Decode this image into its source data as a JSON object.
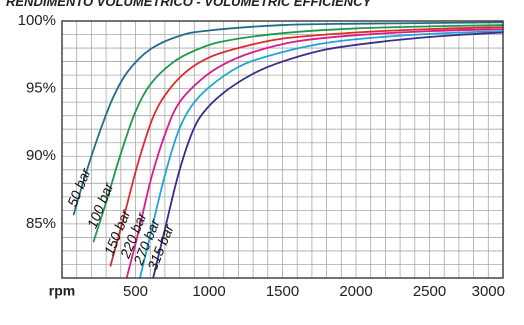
{
  "chart_data": {
    "type": "line",
    "title": "RENDIMENTO VOLUMETRICO - VOLUMETRIC EFFICIENCY",
    "xlabel": "rpm",
    "ylabel": "",
    "xlim": [
      0,
      3000
    ],
    "ylim": [
      81,
      100
    ],
    "x_ticks": [
      {
        "value": 500,
        "label": "500"
      },
      {
        "value": 1000,
        "label": "1000"
      },
      {
        "value": 1500,
        "label": "1500"
      },
      {
        "value": 2000,
        "label": "2000"
      },
      {
        "value": 2500,
        "label": "2500"
      },
      {
        "value": 3000,
        "label": "3000"
      }
    ],
    "y_ticks": [
      {
        "value": 100,
        "label": "100%"
      },
      {
        "value": 95,
        "label": "95%"
      },
      {
        "value": 90,
        "label": "90%"
      },
      {
        "value": 85,
        "label": "85%"
      }
    ],
    "grid": true,
    "grid_color": "#a8a8a8",
    "frame_color": "#444444",
    "series": [
      {
        "name": "50 bar",
        "color": "#1f6e8c",
        "points": [
          [
            80,
            85.7
          ],
          [
            150,
            88.3
          ],
          [
            250,
            91.6
          ],
          [
            350,
            94.4
          ],
          [
            450,
            96.3
          ],
          [
            600,
            97.9
          ],
          [
            800,
            98.9
          ],
          [
            1000,
            99.3
          ],
          [
            1500,
            99.7
          ],
          [
            2000,
            99.8
          ],
          [
            2500,
            99.85
          ],
          [
            3000,
            99.9
          ]
        ]
      },
      {
        "name": "100 bar",
        "color": "#1f9a4a",
        "points": [
          [
            215,
            83.7
          ],
          [
            300,
            86.6
          ],
          [
            400,
            90.2
          ],
          [
            500,
            93.3
          ],
          [
            600,
            95.3
          ],
          [
            750,
            96.9
          ],
          [
            900,
            97.8
          ],
          [
            1100,
            98.5
          ],
          [
            1500,
            99.1
          ],
          [
            2000,
            99.45
          ],
          [
            2500,
            99.6
          ],
          [
            3000,
            99.7
          ]
        ]
      },
      {
        "name": "150 bar",
        "color": "#dc2b2b",
        "points": [
          [
            330,
            81.9
          ],
          [
            420,
            85.5
          ],
          [
            520,
            89.6
          ],
          [
            620,
            92.9
          ],
          [
            720,
            94.8
          ],
          [
            850,
            96.3
          ],
          [
            1000,
            97.3
          ],
          [
            1200,
            98.0
          ],
          [
            1500,
            98.7
          ],
          [
            2000,
            99.15
          ],
          [
            2500,
            99.4
          ],
          [
            3000,
            99.55
          ]
        ]
      },
      {
        "name": "220 bar",
        "color": "#d81b8a",
        "points": [
          [
            440,
            81.0
          ],
          [
            520,
            84.4
          ],
          [
            610,
            88.5
          ],
          [
            710,
            91.9
          ],
          [
            800,
            94.0
          ],
          [
            950,
            95.7
          ],
          [
            1100,
            96.8
          ],
          [
            1300,
            97.7
          ],
          [
            1600,
            98.5
          ],
          [
            2000,
            98.95
          ],
          [
            2500,
            99.25
          ],
          [
            3000,
            99.4
          ]
        ]
      },
      {
        "name": "270 bar",
        "color": "#1ea5d6",
        "points": [
          [
            530,
            81.0
          ],
          [
            610,
            84.6
          ],
          [
            700,
            88.6
          ],
          [
            790,
            91.8
          ],
          [
            880,
            93.7
          ],
          [
            1000,
            95.1
          ],
          [
            1200,
            96.6
          ],
          [
            1400,
            97.4
          ],
          [
            1700,
            98.2
          ],
          [
            2000,
            98.65
          ],
          [
            2500,
            99.05
          ],
          [
            3000,
            99.25
          ]
        ]
      },
      {
        "name": "315 bar",
        "color": "#3d2a8a",
        "points": [
          [
            620,
            81.0
          ],
          [
            700,
            84.6
          ],
          [
            790,
            88.6
          ],
          [
            880,
            91.6
          ],
          [
            960,
            93.2
          ],
          [
            1100,
            94.7
          ],
          [
            1300,
            96.1
          ],
          [
            1500,
            97.0
          ],
          [
            1800,
            97.9
          ],
          [
            2200,
            98.5
          ],
          [
            2600,
            98.9
          ],
          [
            3000,
            99.15
          ]
        ]
      }
    ],
    "annotations": [
      {
        "text": "50 bar",
        "series": 0,
        "x": 95,
        "y": 86.2
      },
      {
        "text": "100 bar",
        "series": 1,
        "x": 230,
        "y": 84.6
      },
      {
        "text": "150 bar",
        "series": 2,
        "x": 345,
        "y": 82.6
      },
      {
        "text": "220 bar",
        "series": 3,
        "x": 455,
        "y": 82.4
      },
      {
        "text": "270 bar",
        "series": 4,
        "x": 545,
        "y": 81.9
      },
      {
        "text": "315 bar",
        "series": 5,
        "x": 640,
        "y": 81.5
      }
    ]
  }
}
